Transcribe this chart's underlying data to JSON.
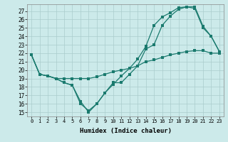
{
  "xlabel": "Humidex (Indice chaleur)",
  "background_color": "#cceaea",
  "grid_color": "#aacccc",
  "line_color": "#1a7a6e",
  "xlim": [
    -0.5,
    23.5
  ],
  "ylim": [
    14.5,
    27.8
  ],
  "yticks": [
    15,
    16,
    17,
    18,
    19,
    20,
    21,
    22,
    23,
    24,
    25,
    26,
    27
  ],
  "xticks": [
    0,
    1,
    2,
    3,
    4,
    5,
    6,
    7,
    8,
    9,
    10,
    11,
    12,
    13,
    14,
    15,
    16,
    17,
    18,
    19,
    20,
    21,
    22,
    23
  ],
  "line1": [
    21.8,
    19.5,
    19.3,
    19.0,
    18.5,
    18.2,
    16.3,
    15.0,
    16.0,
    17.3,
    18.5,
    18.5,
    19.5,
    20.5,
    22.5,
    23.0,
    25.3,
    26.4,
    27.2,
    27.5,
    27.3,
    25.0,
    24.0,
    22.2
  ],
  "line2": [
    21.8,
    19.5,
    19.3,
    19.0,
    18.5,
    18.2,
    16.0,
    15.2,
    16.0,
    17.3,
    18.3,
    19.3,
    20.2,
    21.3,
    22.8,
    25.3,
    26.3,
    26.8,
    27.4,
    27.5,
    27.5,
    25.2,
    24.0,
    22.2
  ],
  "line3": [
    21.8,
    19.5,
    19.3,
    19.0,
    19.0,
    19.0,
    19.0,
    19.0,
    19.2,
    19.5,
    19.8,
    20.0,
    20.2,
    20.5,
    21.0,
    21.2,
    21.5,
    21.8,
    22.0,
    22.2,
    22.3,
    22.3,
    22.0,
    22.0
  ]
}
